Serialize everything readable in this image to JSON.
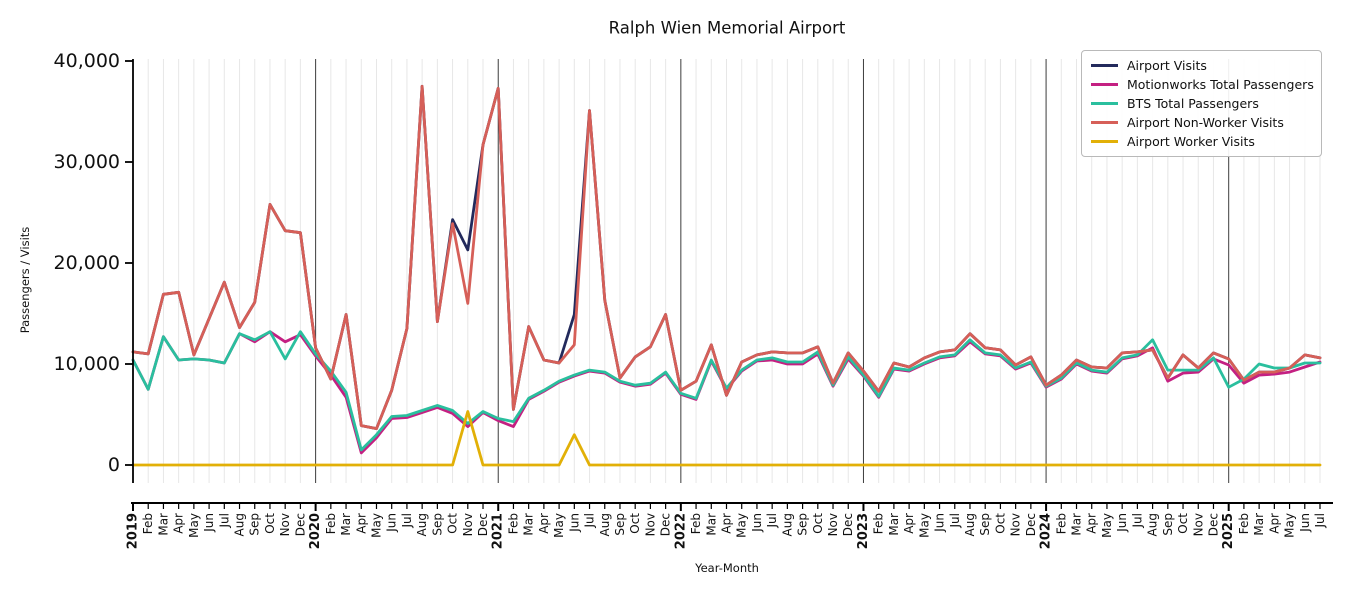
{
  "title": "Ralph Wien Memorial Airport",
  "ylabel": "Passengers / Visits",
  "xlabel": "Year-Month",
  "chart_data": {
    "type": "line",
    "title": "Ralph Wien Memorial Airport",
    "xlabel": "Year-Month",
    "ylabel": "Passengers / Visits",
    "ylim": [
      0,
      40000
    ],
    "yticks": [
      0,
      10000,
      20000,
      30000,
      40000
    ],
    "grid": "vertical monthly gridlines, dark line at each January",
    "legend_position": "upper right",
    "x_labels": [
      "2019",
      "Feb",
      "Mar",
      "Apr",
      "May",
      "Jun",
      "Jul",
      "Aug",
      "Sep",
      "Oct",
      "Nov",
      "Dec",
      "2020",
      "Feb",
      "Mar",
      "Apr",
      "May",
      "Jun",
      "Jul",
      "Aug",
      "Sep",
      "Oct",
      "Nov",
      "Dec",
      "2021",
      "Feb",
      "Mar",
      "Apr",
      "May",
      "Jun",
      "Jul",
      "Aug",
      "Sep",
      "Oct",
      "Nov",
      "Dec",
      "2022",
      "Feb",
      "Mar",
      "Apr",
      "May",
      "Jun",
      "Jul",
      "Aug",
      "Sep",
      "Oct",
      "Nov",
      "Dec",
      "2023",
      "Feb",
      "Mar",
      "Apr",
      "May",
      "Jun",
      "Jul",
      "Aug",
      "Sep",
      "Oct",
      "Nov",
      "Dec",
      "2024",
      "Feb",
      "Mar",
      "Apr",
      "May",
      "Jun",
      "Jul",
      "Aug",
      "Sep",
      "Oct",
      "Nov",
      "Dec",
      "2025",
      "Feb",
      "Mar",
      "Apr",
      "May",
      "Jun",
      "Jul"
    ],
    "year_indices": [
      0,
      12,
      24,
      36,
      48,
      60,
      72
    ],
    "series": [
      {
        "name": "Airport Visits",
        "color": "#232a5c",
        "values": [
          11200,
          11000,
          16900,
          17100,
          10900,
          14500,
          18100,
          13600,
          16100,
          25800,
          23200,
          23000,
          11600,
          8500,
          14900,
          3900,
          3600,
          7400,
          13500,
          37500,
          14200,
          24300,
          21300,
          31700,
          37300,
          5500,
          13700,
          10400,
          10100,
          14900,
          35100,
          16300,
          8600,
          10700,
          11700,
          14900,
          7400,
          8300,
          11900,
          6900,
          10200,
          10900,
          11200,
          11100,
          11100,
          11700,
          8100,
          11100,
          9300,
          7300,
          10100,
          9700,
          10600,
          11200,
          11400,
          13000,
          11600,
          11400,
          9900,
          10700,
          7900,
          8900,
          10400,
          9700,
          9600,
          11100,
          11200,
          11400,
          8600,
          10900,
          9600,
          11100,
          10500,
          8400,
          9200,
          9200,
          9600,
          10900,
          10600
        ]
      },
      {
        "name": "Motionworks Total Passengers",
        "color": "#c42082",
        "values": [
          10400,
          7500,
          12700,
          10400,
          10500,
          10400,
          10100,
          13000,
          12200,
          13200,
          12200,
          12900,
          10800,
          8900,
          6700,
          1200,
          2700,
          4600,
          4700,
          5200,
          5700,
          5100,
          3800,
          5200,
          4400,
          3800,
          6500,
          7300,
          8200,
          8800,
          9300,
          9100,
          8200,
          7800,
          8000,
          9100,
          7000,
          6500,
          10300,
          7500,
          9300,
          10300,
          10400,
          10000,
          10000,
          11000,
          7800,
          10500,
          8800,
          6700,
          9500,
          9300,
          10000,
          10600,
          10800,
          12200,
          11000,
          10800,
          9500,
          10100,
          7700,
          8500,
          10000,
          9300,
          9100,
          10500,
          10800,
          11600,
          8300,
          9100,
          9200,
          10500,
          9900,
          8100,
          8900,
          9000,
          9200,
          9700,
          10200
        ]
      },
      {
        "name": "BTS Total Passengers",
        "color": "#2abf9e",
        "values": [
          10400,
          7500,
          12700,
          10400,
          10500,
          10400,
          10100,
          13000,
          12400,
          13200,
          10500,
          13200,
          11000,
          9300,
          7200,
          1500,
          3000,
          4800,
          4900,
          5400,
          5900,
          5400,
          4100,
          5300,
          4600,
          4300,
          6600,
          7400,
          8300,
          8900,
          9400,
          9200,
          8300,
          7900,
          8100,
          9200,
          7100,
          6600,
          10400,
          7600,
          9400,
          10400,
          10600,
          10200,
          10200,
          11200,
          7900,
          10700,
          8900,
          6800,
          9600,
          9400,
          10100,
          10700,
          10900,
          12400,
          11100,
          10900,
          9600,
          10200,
          7800,
          8600,
          10100,
          9400,
          9200,
          10600,
          10900,
          12400,
          9400,
          9400,
          9400,
          10600,
          7700,
          8500,
          10000,
          9600,
          9600,
          10100,
          10100
        ]
      },
      {
        "name": "Airport Non-Worker Visits",
        "color": "#d65f58",
        "values": [
          11200,
          11000,
          16900,
          17100,
          10900,
          14500,
          18100,
          13600,
          16100,
          25800,
          23200,
          23000,
          11600,
          8500,
          14900,
          3900,
          3600,
          7400,
          13500,
          37500,
          14200,
          23900,
          16000,
          31700,
          37300,
          5500,
          13700,
          10400,
          10100,
          11900,
          35100,
          16300,
          8600,
          10700,
          11700,
          14900,
          7400,
          8300,
          11900,
          6900,
          10200,
          10900,
          11200,
          11100,
          11100,
          11700,
          8100,
          11100,
          9300,
          7300,
          10100,
          9700,
          10600,
          11200,
          11400,
          13000,
          11600,
          11400,
          9900,
          10700,
          7900,
          8900,
          10400,
          9700,
          9600,
          11100,
          11200,
          11400,
          8600,
          10900,
          9600,
          11100,
          10500,
          8400,
          9200,
          9200,
          9600,
          10900,
          10600
        ]
      },
      {
        "name": "Airport Worker Visits",
        "color": "#e2b007",
        "values": [
          0,
          0,
          0,
          0,
          0,
          0,
          0,
          0,
          0,
          0,
          0,
          0,
          0,
          0,
          0,
          0,
          0,
          0,
          0,
          0,
          0,
          0,
          5300,
          0,
          0,
          0,
          0,
          0,
          0,
          3000,
          0,
          0,
          0,
          0,
          0,
          0,
          0,
          0,
          0,
          0,
          0,
          0,
          0,
          0,
          0,
          0,
          0,
          0,
          0,
          0,
          0,
          0,
          0,
          0,
          0,
          0,
          0,
          0,
          0,
          0,
          0,
          0,
          0,
          0,
          0,
          0,
          0,
          0,
          0,
          0,
          0,
          0,
          0,
          0,
          0,
          0,
          0,
          0,
          0
        ]
      }
    ]
  }
}
